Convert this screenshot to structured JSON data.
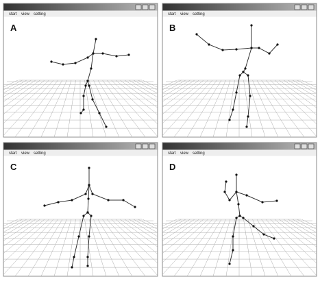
{
  "panels": [
    {
      "label": "A",
      "menu": [
        "start",
        "view",
        "setting"
      ]
    },
    {
      "label": "B",
      "menu": [
        "start",
        "view",
        "setting"
      ]
    },
    {
      "label": "C",
      "menu": [
        "start",
        "view",
        "setting"
      ]
    },
    {
      "label": "D",
      "menu": [
        "start",
        "view",
        "setting"
      ]
    }
  ]
}
